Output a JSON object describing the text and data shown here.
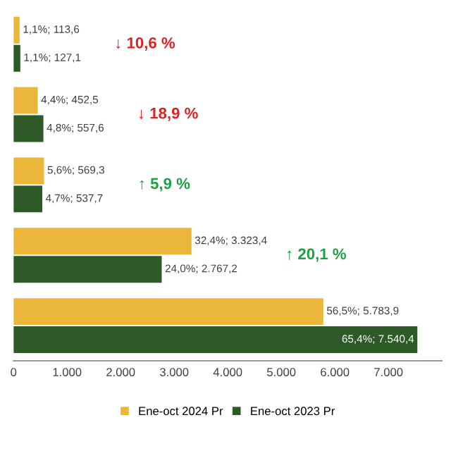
{
  "chart_data": {
    "type": "bar",
    "orientation": "horizontal",
    "categories": [
      null,
      null,
      null,
      null,
      null
    ],
    "series": [
      {
        "name": "Ene-oct 2024 Pr",
        "color": "#ebb73b",
        "values": [
          113.6,
          452.5,
          569.3,
          3323.4,
          5783.9
        ],
        "value_labels": [
          "1,1%; 113,6",
          "4,4%; 452,5",
          "5,6%; 569,3",
          "32,4%; 3.323,4",
          "56,5%; 5.783,9"
        ]
      },
      {
        "name": "Ene-oct 2023 Pr",
        "color": "#2d5a27",
        "values": [
          127.1,
          557.6,
          537.7,
          2767.2,
          7540.4
        ],
        "value_labels": [
          "1,1%; 127,1",
          "4,8%; 557,6",
          "4,7%; 537,7",
          "24,0%; 2.767,2",
          "65,4%; 7.540,4"
        ]
      }
    ],
    "xlim": [
      0,
      8000
    ],
    "xticks": [
      0,
      {
        "value": 1000,
        "label": "1.000"
      },
      {
        "value": 2000,
        "label": "2.000"
      },
      {
        "value": 3000,
        "label": "3.000"
      },
      {
        "value": 4000,
        "label": "4.000"
      },
      {
        "value": 5000,
        "label": "5.000"
      },
      {
        "value": 6000,
        "label": "6.000"
      },
      {
        "value": 7000,
        "label": "7.000"
      }
    ],
    "annotations": [
      "↓ 10,6 %",
      "↓ 18,9 %",
      "↑ 5,9 %",
      "↑ 20,1 %"
    ],
    "legend": "bottom",
    "grid": false
  }
}
